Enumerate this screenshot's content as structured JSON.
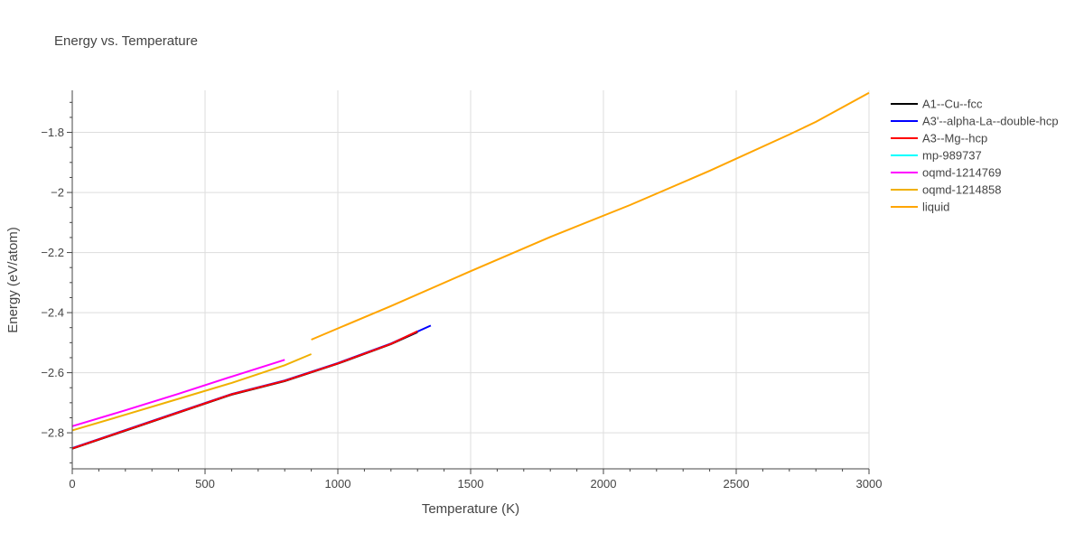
{
  "chart_data": {
    "type": "line",
    "title": "Energy vs. Temperature",
    "xlabel": "Temperature (K)",
    "ylabel": "Energy (eV/atom)",
    "xlim": [
      0,
      3000
    ],
    "ylim": [
      -2.92,
      -1.66
    ],
    "x_ticks": [
      0,
      500,
      1000,
      1500,
      2000,
      2500,
      3000
    ],
    "x_tick_labels": [
      "0",
      "500",
      "1000",
      "1500",
      "2000",
      "2500",
      "3000"
    ],
    "y_ticks": [
      -2.8,
      -2.6,
      -2.4,
      -2.2,
      -2.0,
      -1.8
    ],
    "y_tick_labels": [
      "−2.8",
      "−2.6",
      "−2.4",
      "−2.2",
      "−2",
      "−1.8"
    ],
    "grid": true,
    "legend_position": "right",
    "series": [
      {
        "name": "A1--Cu--fcc",
        "color": "#000000",
        "x": [
          0,
          200,
          400,
          600,
          800,
          1000,
          1200,
          1300
        ],
        "y": [
          -2.853,
          -2.793,
          -2.733,
          -2.673,
          -2.628,
          -2.57,
          -2.505,
          -2.465
        ]
      },
      {
        "name": "A3'--alpha-La--double-hcp",
        "color": "#0000ff",
        "x": [
          0,
          200,
          400,
          600,
          800,
          1000,
          1200,
          1350
        ],
        "y": [
          -2.851,
          -2.791,
          -2.731,
          -2.671,
          -2.626,
          -2.568,
          -2.503,
          -2.443
        ]
      },
      {
        "name": "A3--Mg--hcp",
        "color": "#ff0000",
        "x": [
          0,
          200,
          400,
          600,
          800,
          1000,
          1200,
          1300
        ],
        "y": [
          -2.852,
          -2.792,
          -2.732,
          -2.672,
          -2.627,
          -2.569,
          -2.504,
          -2.462
        ]
      },
      {
        "name": "mp-989737",
        "color": "#00ffff",
        "x": [],
        "y": []
      },
      {
        "name": "oqmd-1214769",
        "color": "#ff00ff",
        "x": [
          0,
          200,
          400,
          600,
          800
        ],
        "y": [
          -2.778,
          -2.725,
          -2.67,
          -2.613,
          -2.557
        ]
      },
      {
        "name": "oqmd-1214858",
        "color": "#f0b000",
        "x": [
          0,
          200,
          400,
          600,
          800,
          900
        ],
        "y": [
          -2.792,
          -2.74,
          -2.687,
          -2.634,
          -2.575,
          -2.538
        ]
      },
      {
        "name": "liquid",
        "color": "#ffa500",
        "x": [
          900,
          1200,
          1500,
          1800,
          2100,
          2400,
          2700,
          2800,
          3000
        ],
        "y": [
          -2.49,
          -2.378,
          -2.262,
          -2.148,
          -2.042,
          -1.928,
          -1.807,
          -1.765,
          -1.668
        ]
      }
    ]
  }
}
